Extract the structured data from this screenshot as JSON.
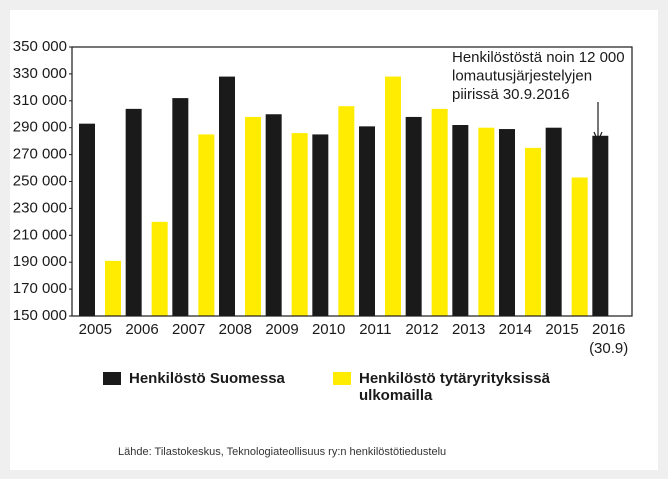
{
  "chart_data": {
    "type": "bar",
    "categories": [
      "2005",
      "2006",
      "2007",
      "2008",
      "2009",
      "2010",
      "2011",
      "2012",
      "2013",
      "2014",
      "2015",
      "2016 (30.9)"
    ],
    "series": [
      {
        "name": "Henkilöstö Suomessa",
        "color": "#1a1a1a",
        "values": [
          293000,
          304000,
          312000,
          328000,
          300000,
          285000,
          291000,
          298000,
          292000,
          289000,
          290000,
          284000
        ]
      },
      {
        "name": "Henkilöstö tytäryrityksissä ulkomailla",
        "color": "#ffec00",
        "values": [
          191000,
          220000,
          285000,
          298000,
          286000,
          306000,
          328000,
          304000,
          290000,
          275000,
          253000,
          null
        ]
      }
    ],
    "ylim": [
      150000,
      350000
    ],
    "yticks": [
      {
        "value": 150000,
        "label": "150 000"
      },
      {
        "value": 170000,
        "label": "170 000"
      },
      {
        "value": 190000,
        "label": "190 000"
      },
      {
        "value": 210000,
        "label": "210 000"
      },
      {
        "value": 230000,
        "label": "230 000"
      },
      {
        "value": 250000,
        "label": "250 000"
      },
      {
        "value": 270000,
        "label": "270 000"
      },
      {
        "value": 290000,
        "label": "290 000"
      },
      {
        "value": 310000,
        "label": "310 000"
      },
      {
        "value": 330000,
        "label": "330 000"
      },
      {
        "value": 350000,
        "label": "350 000"
      }
    ],
    "annotation": [
      "Henkilöstöstä noin 12 000",
      "lomautusjärjestelyjen",
      "piirissä  30.9.2016"
    ],
    "source": "Lähde: Tilastokeskus, Teknologiateollisuus ry:n henkilöstötiedustelu"
  }
}
